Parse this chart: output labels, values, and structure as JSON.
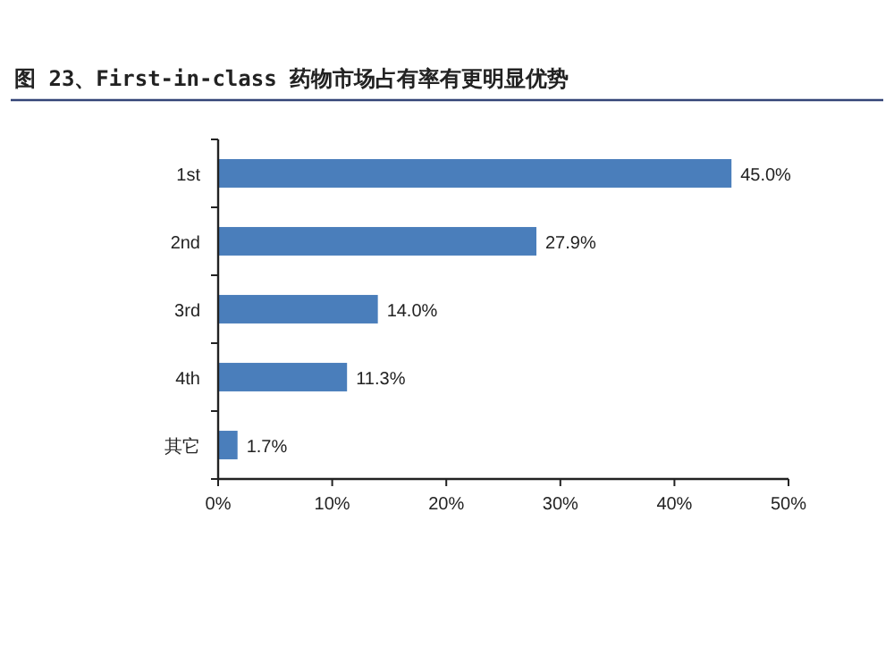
{
  "chart_data": {
    "type": "bar",
    "orientation": "horizontal",
    "title": "图 23、First-in-class 药物市场占有率有更明显优势",
    "categories": [
      "1st",
      "2nd",
      "3rd",
      "4th",
      "其它"
    ],
    "values": [
      45.0,
      27.9,
      14.0,
      11.3,
      1.7
    ],
    "value_labels": [
      "45.0%",
      "27.9%",
      "14.0%",
      "11.3%",
      "1.7%"
    ],
    "color": "#4a7ebb",
    "xlim": [
      0,
      50
    ],
    "xticks": [
      {
        "value": 0,
        "label": "0%"
      },
      {
        "value": 10,
        "label": "10%"
      },
      {
        "value": 20,
        "label": "20%"
      },
      {
        "value": 30,
        "label": "30%"
      },
      {
        "value": 40,
        "label": "40%"
      },
      {
        "value": 50,
        "label": "50%"
      }
    ],
    "grid": false
  }
}
